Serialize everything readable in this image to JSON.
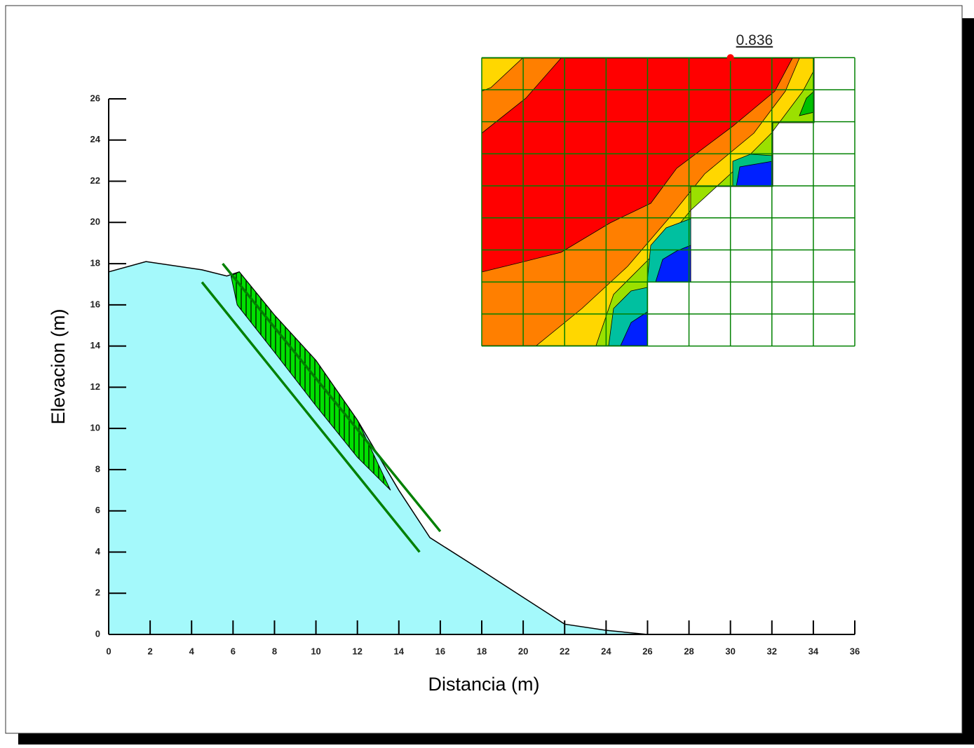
{
  "chart_data": {
    "type": "slope",
    "x_label": "Distancia (m)",
    "y_label": "Elevacion (m)",
    "xlim": [
      0,
      36
    ],
    "ylim": [
      0,
      26
    ],
    "xticks": [
      0,
      2,
      4,
      6,
      8,
      10,
      12,
      14,
      16,
      18,
      20,
      22,
      24,
      26,
      28,
      30,
      32,
      34,
      36
    ],
    "yticks": [
      0,
      2,
      4,
      6,
      8,
      10,
      12,
      14,
      16,
      18,
      20,
      22,
      24,
      26
    ],
    "surface": {
      "color": "#a4f9fb",
      "x": [
        0,
        1.8,
        4.5,
        5.7,
        6.3,
        8,
        10,
        12,
        14,
        15.5,
        18,
        20,
        22,
        24,
        26
      ],
      "y": [
        17.6,
        18.1,
        17.7,
        17.4,
        17.6,
        15.5,
        13.3,
        10.4,
        7,
        4.7,
        3.1,
        1.8,
        0.5,
        0.2,
        0
      ]
    },
    "slip_mass": {
      "color": "#00e000",
      "x": [
        5.9,
        6.3,
        8,
        10,
        12,
        13.6,
        12,
        10,
        8,
        6.2
      ],
      "y": [
        17.4,
        17.6,
        15.5,
        13.3,
        10.4,
        7,
        8.6,
        11.1,
        13.7,
        16
      ]
    },
    "radius_lines": {
      "color": "#008000",
      "x1": [
        4.5,
        5.5
      ],
      "y1": [
        17.1,
        18
      ],
      "x2": [
        15,
        16
      ],
      "y2": [
        4,
        5
      ]
    },
    "center_grid": {
      "color": "#008000",
      "xlim": [
        18,
        36
      ],
      "ylim": [
        14,
        28
      ],
      "nx": 9,
      "ny": 9
    },
    "critical": {
      "x": 30,
      "y": 28,
      "factor_of_safety": 0.836,
      "color": "#ff0000"
    }
  }
}
